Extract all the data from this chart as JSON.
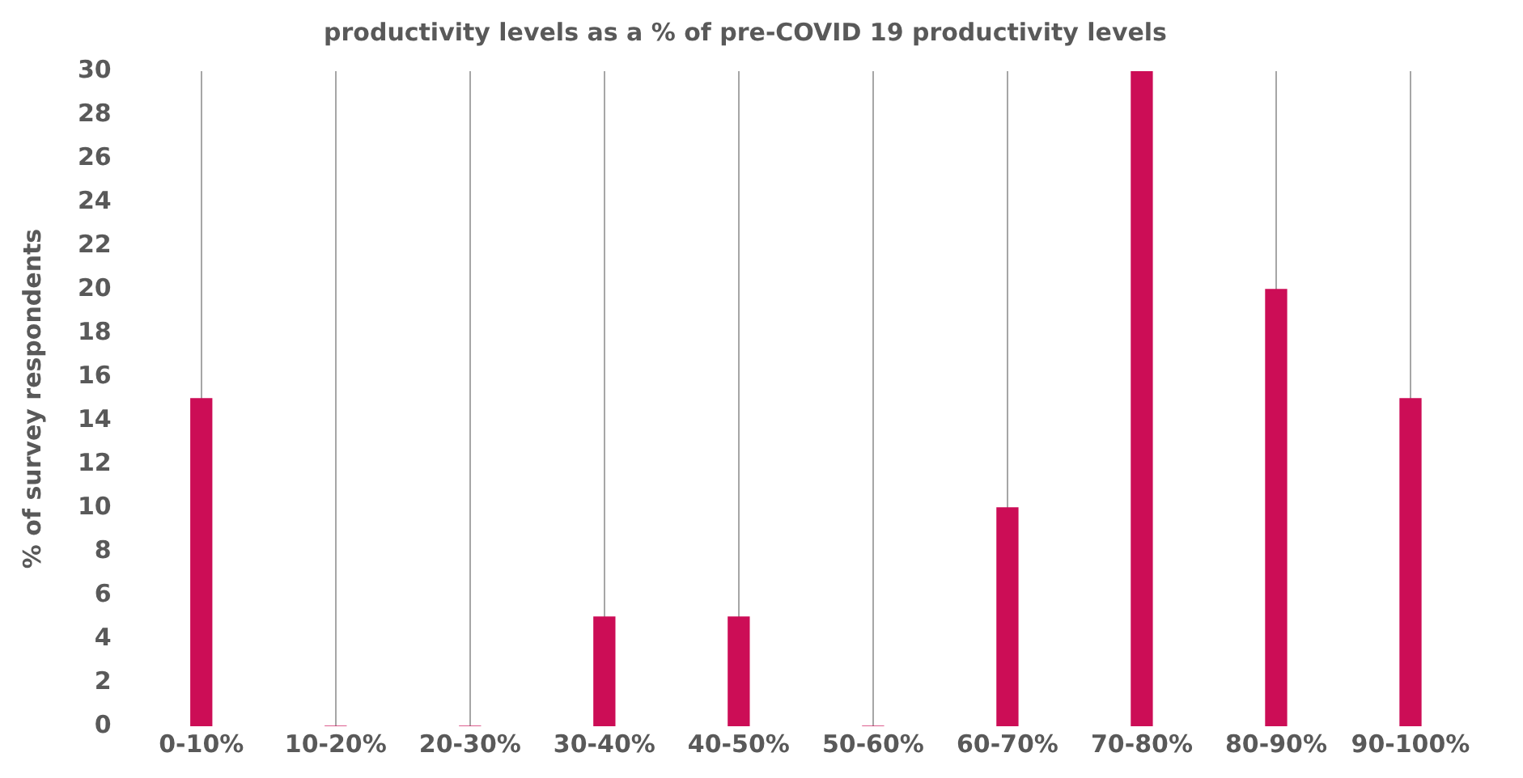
{
  "chart_data": {
    "type": "bar",
    "title": "productivity levels as a % of pre-COVID 19 productivity levels",
    "ylabel": "% of survey respondents",
    "categories": [
      "0-10%",
      "10-20%",
      "20-30%",
      "30-40%",
      "40-50%",
      "50-60%",
      "60-70%",
      "70-80%",
      "80-90%",
      "90-100%"
    ],
    "values": [
      15,
      0,
      0,
      5,
      5,
      0,
      10,
      30,
      20,
      15
    ],
    "color": "#cc0d56",
    "ylim": [
      0,
      30
    ],
    "yticks": [
      0,
      2,
      4,
      6,
      8,
      10,
      12,
      14,
      16,
      18,
      20,
      22,
      24,
      26,
      28,
      30
    ],
    "grid": "x",
    "legend": false
  }
}
